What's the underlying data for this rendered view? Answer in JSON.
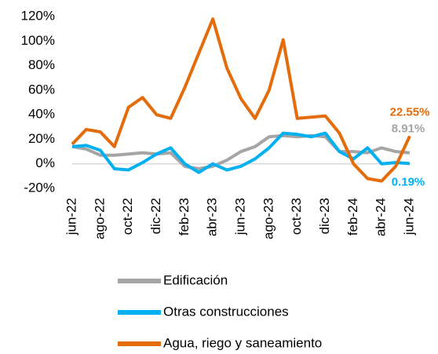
{
  "chart_data": {
    "type": "line",
    "categories": [
      "jun-22",
      null,
      "ago-22",
      null,
      "oct-22",
      null,
      "dic-22",
      null,
      "feb-23",
      null,
      "abr-23",
      null,
      "jun-23",
      null,
      "ago-23",
      null,
      "oct-23",
      null,
      "dic-23",
      null,
      "feb-24",
      null,
      "abr-24",
      null,
      "jun-24"
    ],
    "ylim": [
      -20,
      120
    ],
    "yticks": [
      {
        "value": -20,
        "label": "-20%"
      },
      {
        "value": 0,
        "label": "0%"
      },
      {
        "value": 20,
        "label": "20%"
      },
      {
        "value": 40,
        "label": "40%"
      },
      {
        "value": 60,
        "label": "60%"
      },
      {
        "value": 80,
        "label": "80%"
      },
      {
        "value": 100,
        "label": "100%"
      },
      {
        "value": 120,
        "label": "120%"
      }
    ],
    "series": [
      {
        "name": "Edificación",
        "color": "#a5a5a5",
        "values": [
          14,
          12,
          7,
          7,
          8,
          9,
          8,
          9,
          -2,
          -4,
          -2,
          3,
          10,
          14,
          22,
          23,
          22,
          23,
          22,
          10,
          10,
          9,
          13,
          10,
          8.91
        ],
        "value_labels": [
          null,
          null,
          null,
          null,
          null,
          null,
          null,
          null,
          null,
          null,
          null,
          null,
          null,
          null,
          null,
          null,
          null,
          null,
          null,
          null,
          null,
          null,
          null,
          null,
          "8.91%"
        ]
      },
      {
        "name": "Otras construcciones",
        "color": "#00b0f0",
        "values": [
          14,
          15,
          11,
          -4,
          -5,
          1,
          8,
          13,
          0,
          -7,
          0,
          -5,
          -2,
          4,
          13,
          25,
          24,
          22,
          25,
          10,
          4,
          13,
          0,
          1,
          0.19
        ],
        "value_labels": [
          null,
          null,
          null,
          null,
          null,
          null,
          null,
          null,
          null,
          null,
          null,
          null,
          null,
          null,
          null,
          null,
          null,
          null,
          null,
          null,
          null,
          null,
          null,
          null,
          "0.19%"
        ]
      },
      {
        "name": "Agua, riego y saneamiento",
        "color": "#e46c0a",
        "values": [
          16,
          28,
          26,
          14,
          46,
          54,
          40,
          37,
          62,
          90,
          118,
          78,
          53,
          37,
          60,
          101,
          37,
          38,
          39,
          25,
          0,
          -12,
          -14,
          -2,
          22.55
        ],
        "value_labels": [
          null,
          null,
          null,
          null,
          null,
          null,
          null,
          null,
          null,
          null,
          null,
          null,
          null,
          null,
          null,
          null,
          null,
          null,
          null,
          null,
          null,
          null,
          null,
          null,
          "22.55%"
        ]
      }
    ]
  }
}
